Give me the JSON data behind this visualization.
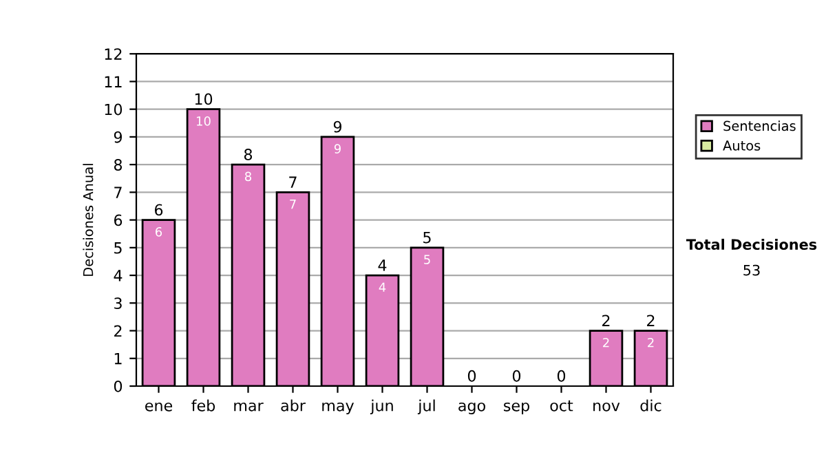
{
  "chart_data": {
    "type": "bar",
    "ylabel": "Decisiones Anual",
    "categories": [
      "ene",
      "feb",
      "mar",
      "abr",
      "may",
      "jun",
      "jul",
      "ago",
      "sep",
      "oct",
      "nov",
      "dic"
    ],
    "series": [
      {
        "name": "Sentencias",
        "color": "#e07cc0",
        "values": [
          6,
          10,
          8,
          7,
          9,
          4,
          5,
          0,
          0,
          0,
          2,
          2
        ],
        "value_labels": [
          "6",
          "10",
          "8",
          "7",
          "9",
          "4",
          "5",
          null,
          null,
          null,
          "2",
          "2"
        ]
      },
      {
        "name": "Autos",
        "color": "#d8eca0",
        "values": [
          0,
          0,
          0,
          0,
          0,
          0,
          0,
          0,
          0,
          0,
          0,
          0
        ]
      }
    ],
    "stacked": true,
    "totals": [
      "6",
      "10",
      "8",
      "7",
      "9",
      "4",
      "5",
      "0",
      "0",
      "0",
      "2",
      "2"
    ],
    "ylim": [
      0,
      12
    ],
    "yticks": [
      0,
      1,
      2,
      3,
      4,
      5,
      6,
      7,
      8,
      9,
      10,
      11,
      12
    ],
    "grid": "y",
    "legend": "right",
    "annotations": [
      "Total Decisiones",
      "53"
    ]
  }
}
